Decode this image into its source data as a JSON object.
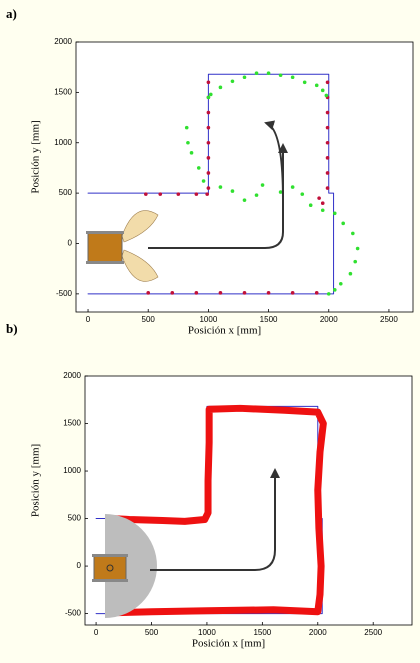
{
  "chart_data": [
    {
      "type": "scatter",
      "label": "a)",
      "xlabel": "Posición x [mm]",
      "ylabel": "Posición y [mm]",
      "xlim": [
        -100,
        2700
      ],
      "ylim": [
        -680,
        2000
      ],
      "xticks": [
        0,
        500,
        1000,
        1500,
        2000,
        2500
      ],
      "yticks": [
        -500,
        0,
        500,
        1000,
        1500,
        2000
      ],
      "series": [
        {
          "kind": "line",
          "color": "#3030c8",
          "x": [
            0,
            1000,
            1000,
            2000,
            2000,
            2040,
            2040,
            0
          ],
          "y": [
            500,
            500,
            1680,
            1680,
            500,
            500,
            -500,
            -500
          ]
        },
        {
          "kind": "points",
          "color": "#c0103a",
          "x": [
            500,
            700,
            900,
            1100,
            1300,
            1500,
            1700,
            1900,
            480,
            600,
            750,
            900,
            990,
            1000,
            1000,
            1000,
            1000,
            1000,
            1000,
            1000,
            1000,
            1990,
            1990,
            1990,
            1990,
            1990,
            1990,
            1990,
            1990,
            1920,
            1950
          ],
          "y": [
            -490,
            -490,
            -490,
            -490,
            -490,
            -490,
            -490,
            -490,
            490,
            490,
            490,
            490,
            490,
            550,
            700,
            850,
            1000,
            1150,
            1300,
            1450,
            1600,
            1600,
            1450,
            1300,
            1150,
            1000,
            850,
            700,
            550,
            450,
            400
          ]
        },
        {
          "kind": "points",
          "color": "#30e030",
          "x": [
            1000,
            1020,
            1100,
            1200,
            1300,
            1400,
            1500,
            1600,
            1700,
            1800,
            1900,
            1950,
            1980,
            830,
            820,
            860,
            920,
            960,
            1100,
            1200,
            1300,
            1400,
            1450,
            1600,
            1700,
            1780,
            1850,
            1950,
            2050,
            2120,
            2200,
            2240,
            2220,
            2180,
            2100,
            2050,
            2000
          ],
          "y": [
            1450,
            1480,
            1550,
            1610,
            1650,
            1690,
            1690,
            1670,
            1650,
            1600,
            1570,
            1520,
            1470,
            1000,
            1150,
            900,
            750,
            620,
            560,
            520,
            430,
            480,
            580,
            510,
            560,
            490,
            380,
            330,
            300,
            200,
            100,
            -50,
            -180,
            -300,
            -400,
            -460,
            -500
          ]
        }
      ]
    },
    {
      "type": "scatter",
      "label": "b)",
      "xlabel": "Posición x [mm]",
      "ylabel": "Posición y [mm]",
      "xlim": [
        -100,
        2850
      ],
      "ylim": [
        -620,
        2000
      ],
      "xticks": [
        0,
        500,
        1000,
        1500,
        2000,
        2500
      ],
      "yticks": [
        -500,
        0,
        500,
        1000,
        1500,
        2000
      ],
      "series": [
        {
          "kind": "line",
          "color": "#3030c8",
          "x": [
            0,
            1000,
            1000,
            2000,
            2000,
            2040,
            2040,
            0
          ],
          "y": [
            500,
            500,
            1680,
            1680,
            500,
            500,
            -500,
            -500
          ]
        },
        {
          "kind": "trail",
          "color": "#ee1111",
          "x": [
            150,
            300,
            600,
            800,
            980,
            1010,
            1010,
            1020,
            1020,
            1300,
            1700,
            2000,
            2050,
            2020,
            2000,
            2010,
            2030,
            2020,
            2000,
            1600,
            1000,
            500,
            200
          ],
          "y": [
            500,
            490,
            480,
            470,
            490,
            560,
            900,
            1300,
            1650,
            1660,
            1640,
            1620,
            1500,
            1200,
            800,
            400,
            0,
            -300,
            -480,
            -460,
            -470,
            -480,
            -490
          ]
        }
      ]
    }
  ]
}
